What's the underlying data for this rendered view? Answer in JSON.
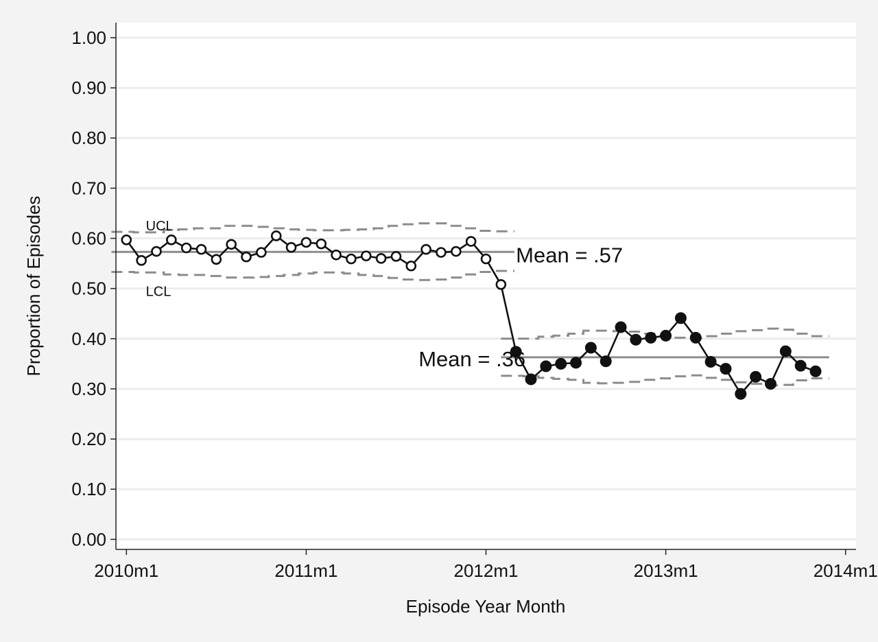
{
  "chart_data": {
    "type": "line",
    "title": "",
    "xlabel": "Episode Year Month",
    "ylabel": "Proportion of Episodes",
    "xlim": [
      -0.7,
      48.7
    ],
    "ylim": [
      -0.02,
      1.03
    ],
    "grid": true,
    "x_ticks": [
      {
        "x": 0,
        "label": "2010m1"
      },
      {
        "x": 12,
        "label": "2011m1"
      },
      {
        "x": 24,
        "label": "2012m1"
      },
      {
        "x": 36,
        "label": "2013m1"
      },
      {
        "x": 48,
        "label": "2014m1"
      }
    ],
    "y_ticks": [
      {
        "y": 0.0,
        "label": "0.00"
      },
      {
        "y": 0.1,
        "label": "0.10"
      },
      {
        "y": 0.2,
        "label": "0.20"
      },
      {
        "y": 0.3,
        "label": "0.30"
      },
      {
        "y": 0.4,
        "label": "0.40"
      },
      {
        "y": 0.5,
        "label": "0.50"
      },
      {
        "y": 0.6,
        "label": "0.60"
      },
      {
        "y": 0.7,
        "label": "0.70"
      },
      {
        "y": 0.8,
        "label": "0.80"
      },
      {
        "y": 0.9,
        "label": "0.90"
      },
      {
        "y": 1.0,
        "label": "1.00"
      }
    ],
    "series": [
      {
        "marker": "open",
        "x": [
          0,
          1,
          2,
          3,
          4,
          5,
          6,
          7,
          8,
          9,
          10,
          11,
          12,
          13,
          14,
          15,
          16,
          17,
          18,
          19,
          20,
          21,
          22,
          23,
          24,
          25
        ],
        "y": [
          0.597,
          0.556,
          0.574,
          0.597,
          0.581,
          0.578,
          0.558,
          0.588,
          0.563,
          0.572,
          0.605,
          0.582,
          0.592,
          0.589,
          0.567,
          0.559,
          0.565,
          0.56,
          0.564,
          0.545,
          0.578,
          0.572,
          0.574,
          0.594,
          0.559,
          0.508
        ]
      },
      {
        "marker": "filled",
        "x": [
          26,
          27,
          28,
          29,
          30,
          31,
          32,
          33,
          34,
          35,
          36,
          37,
          38,
          39,
          40,
          41,
          42,
          43,
          44,
          45,
          46
        ],
        "y": [
          0.374,
          0.319,
          0.345,
          0.35,
          0.352,
          0.382,
          0.355,
          0.423,
          0.398,
          0.402,
          0.406,
          0.441,
          0.402,
          0.354,
          0.34,
          0.29,
          0.324,
          0.31,
          0.375,
          0.346,
          0.335
        ]
      }
    ],
    "control_periods": [
      {
        "x_start": 0,
        "x_end": 25,
        "mean": 0.573,
        "ucl": [
          0.613,
          0.612,
          0.612,
          0.617,
          0.618,
          0.62,
          0.62,
          0.625,
          0.625,
          0.623,
          0.62,
          0.618,
          0.617,
          0.616,
          0.616,
          0.617,
          0.618,
          0.62,
          0.625,
          0.628,
          0.63,
          0.63,
          0.625,
          0.62,
          0.615,
          0.614
        ],
        "lcl": [
          0.533,
          0.532,
          0.532,
          0.528,
          0.527,
          0.527,
          0.525,
          0.522,
          0.522,
          0.523,
          0.525,
          0.527,
          0.53,
          0.532,
          0.532,
          0.53,
          0.527,
          0.525,
          0.521,
          0.518,
          0.517,
          0.518,
          0.522,
          0.528,
          0.533,
          0.535
        ]
      },
      {
        "x_start": 26,
        "x_end": 46,
        "mean": 0.363,
        "ucl": [
          0.4,
          0.4,
          0.404,
          0.406,
          0.41,
          0.416,
          0.416,
          0.415,
          0.414,
          0.41,
          0.406,
          0.402,
          0.401,
          0.405,
          0.41,
          0.415,
          0.417,
          0.42,
          0.418,
          0.41,
          0.405
        ],
        "lcl": [
          0.326,
          0.325,
          0.322,
          0.32,
          0.318,
          0.312,
          0.311,
          0.312,
          0.314,
          0.318,
          0.321,
          0.325,
          0.327,
          0.322,
          0.318,
          0.313,
          0.31,
          0.307,
          0.308,
          0.317,
          0.321
        ]
      }
    ],
    "annotations": [
      {
        "id": "ucl",
        "text": "UCL",
        "x": 1.3,
        "y": 0.625
      },
      {
        "id": "lcl",
        "text": "LCL",
        "x": 1.3,
        "y": 0.495
      },
      {
        "id": "mean1",
        "text": "Mean = .57",
        "x": 26.0,
        "y": 0.567
      },
      {
        "id": "mean2",
        "text": "Mean = .36",
        "x": 19.5,
        "y": 0.36
      }
    ],
    "colors": {
      "line": "#111111",
      "mean": "#8c8c8c",
      "limit": "#8c8c8c",
      "grid": "#ececec",
      "plot_bg": "#ffffff",
      "page_bg": "#f3f3f3"
    }
  }
}
